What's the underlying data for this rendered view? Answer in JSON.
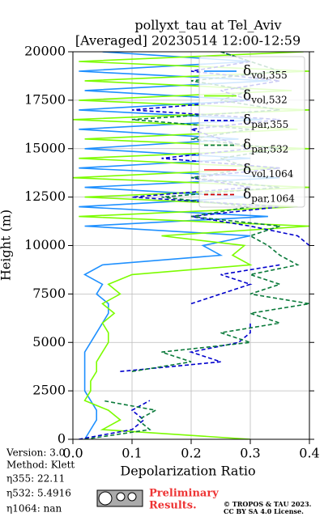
{
  "chart_data": {
    "type": "line",
    "title": "pollyxt_tau at Tel_Aviv",
    "subtitle": "[Averaged] 20230514 12:00-12:59",
    "xlabel": "Depolarization Ratio",
    "ylabel": "Height (m)",
    "xlim": [
      0,
      0.4
    ],
    "xticks": [
      {
        "value": 0,
        "label": "0.0"
      },
      0.1,
      0.2,
      0.3,
      0.4
    ],
    "ylim": [
      0,
      20000
    ],
    "yticks": [
      0,
      2500,
      5000,
      7500,
      10000,
      12500,
      15000,
      17500,
      20000
    ],
    "grid": true,
    "legend": "upper right",
    "heights": [
      0,
      500,
      1000,
      1500,
      2000,
      2500,
      3000,
      3500,
      4000,
      4500,
      5000,
      5500,
      6000,
      6500,
      7000,
      7500,
      8000,
      8500,
      9000,
      9500,
      10000,
      10500,
      11000,
      11500,
      12000,
      12500,
      13000,
      13500,
      14000,
      14500,
      15000,
      15500,
      16000,
      16500,
      17000,
      17500,
      18000,
      18500,
      19000,
      19500,
      20000
    ],
    "series": [
      {
        "name": "δvol,355",
        "color": "#1e90ff",
        "dash": false,
        "values": [
          0.02,
          0.03,
          0.04,
          0.04,
          0.03,
          0.02,
          0.02,
          0.02,
          0.02,
          0.02,
          0.03,
          0.04,
          0.05,
          0.06,
          0.06,
          0.04,
          0.05,
          0.02,
          0.05,
          0.25,
          0.22,
          0.3,
          0.02,
          0.33,
          0.01,
          0.3,
          0.02,
          0.35,
          0.01,
          0.3,
          0.02,
          0.28,
          0.01,
          0.32,
          0.01,
          0.3,
          0.02,
          0.33,
          0.01,
          0.3,
          0.05
        ]
      },
      {
        "name": "δvol,532",
        "color": "#7cfc00",
        "dash": false,
        "values": [
          0.3,
          0.05,
          0.08,
          0.06,
          0.02,
          0.03,
          0.03,
          0.04,
          0.04,
          0.05,
          0.06,
          0.06,
          0.05,
          0.07,
          0.05,
          0.08,
          0.06,
          0.1,
          0.3,
          0.27,
          0.29,
          0.15,
          0.4,
          0.01,
          0.38,
          0.02,
          0.4,
          0.0,
          0.35,
          0.01,
          0.4,
          0.02,
          0.38,
          0.0,
          0.4,
          0.01,
          0.37,
          0.02,
          0.4,
          0.01,
          0.39
        ]
      },
      {
        "name": "δpar,355",
        "color": "#0000cd",
        "dash": true,
        "values": [
          0.01,
          0.1,
          0.12,
          0.1,
          0.13,
          null,
          null,
          0.08,
          0.25,
          0.2,
          0.28,
          0.3,
          0.3,
          null,
          0.2,
          0.25,
          0.3,
          0.25,
          0.35,
          null,
          0.4,
          0.38,
          0.3,
          0.2,
          0.35,
          0.1,
          0.3,
          0.2,
          0.35,
          0.15,
          0.3,
          0.25,
          0.2,
          0.35,
          0.1,
          0.3,
          0.25,
          0.35,
          0.2,
          0.3,
          0.25
        ]
      },
      {
        "name": "δpar,532",
        "color": "#0a7a3a",
        "dash": true,
        "values": [
          0.02,
          0.13,
          0.11,
          0.14,
          0.05,
          null,
          null,
          0.1,
          0.2,
          0.15,
          0.3,
          0.25,
          0.35,
          0.3,
          0.4,
          0.3,
          0.35,
          0.3,
          0.38,
          0.35,
          0.33,
          0.3,
          0.35,
          0.2,
          0.3,
          0.15,
          0.35,
          0.2,
          0.3,
          0.25,
          0.35,
          0.2,
          0.3,
          0.1,
          0.35,
          0.25,
          0.3,
          0.2,
          0.35,
          0.3,
          0.25
        ]
      },
      {
        "name": "δvol,1064",
        "color": "#ff4040",
        "dash": false,
        "values": [
          null,
          null,
          null,
          null,
          null,
          null,
          null,
          null,
          null,
          null,
          null,
          null,
          null,
          null,
          null,
          null,
          null,
          null,
          null,
          null,
          null,
          null,
          null,
          null,
          null,
          null,
          null,
          null,
          null,
          null,
          null,
          null,
          null,
          null,
          null,
          null,
          null,
          null,
          null,
          null,
          null
        ]
      },
      {
        "name": "δpar,1064",
        "color": "#d00000",
        "dash": true,
        "values": [
          null,
          null,
          null,
          null,
          null,
          null,
          null,
          null,
          null,
          null,
          null,
          null,
          null,
          null,
          null,
          null,
          null,
          null,
          null,
          null,
          null,
          null,
          null,
          null,
          null,
          null,
          null,
          null,
          null,
          null,
          null,
          null,
          null,
          null,
          null,
          null,
          null,
          null,
          null,
          null,
          null
        ]
      }
    ]
  },
  "footer": {
    "version": "Version: 3.0",
    "method": "Method: Klett",
    "eta355": "η355:  22.11",
    "eta532": "η532: 5.4916",
    "eta1064": "η1064:    nan",
    "preliminary": [
      "Preliminary",
      "Results."
    ],
    "copyright": "© TROPOS & TAU 2023.",
    "license": "CC BY SA 4.0 License."
  }
}
